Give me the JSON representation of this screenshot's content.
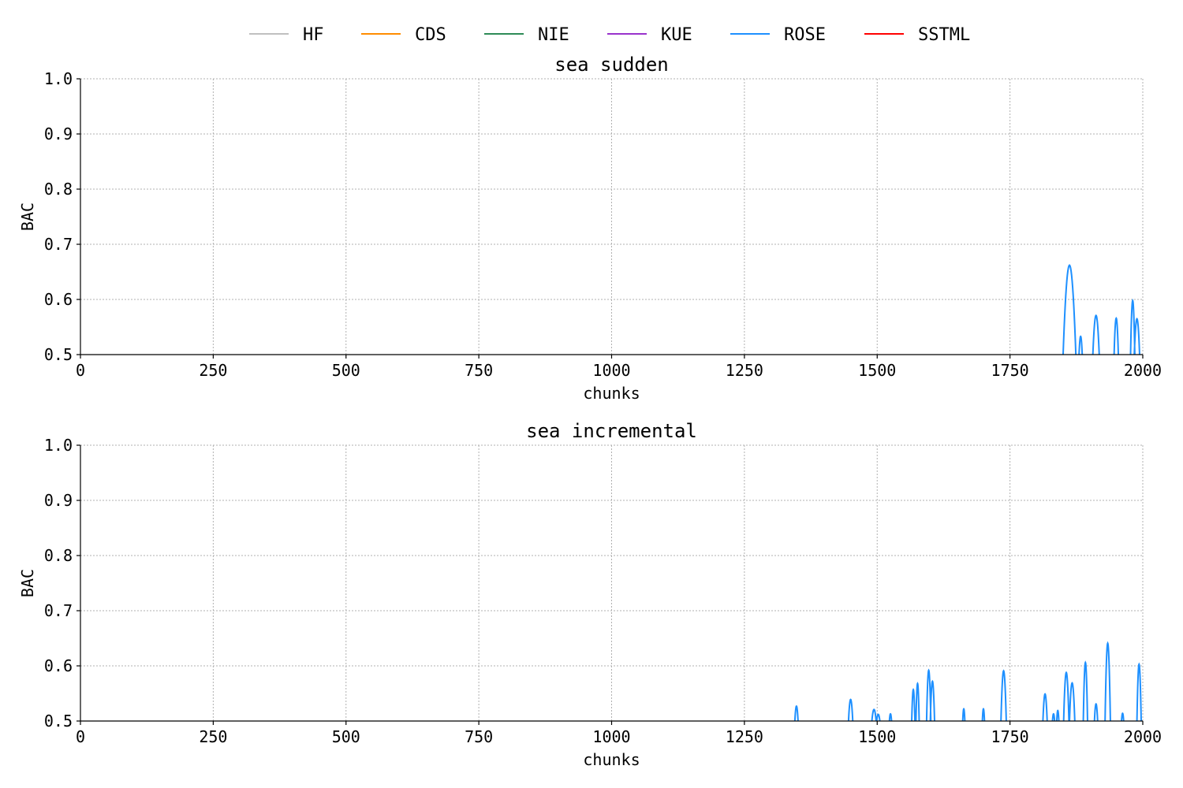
{
  "legend": [
    {
      "name": "HF",
      "color": "#c0c0c0"
    },
    {
      "name": "CDS",
      "color": "#ff8c00"
    },
    {
      "name": "NIE",
      "color": "#2e8b57"
    },
    {
      "name": "KUE",
      "color": "#9932cc"
    },
    {
      "name": "ROSE",
      "color": "#1e90ff"
    },
    {
      "name": "SSTML",
      "color": "#ff0000"
    }
  ],
  "chart_data": [
    {
      "type": "line",
      "title": "sea sudden",
      "xlabel": "chunks",
      "ylabel": "BAC",
      "xlim": [
        0,
        2000
      ],
      "ylim": [
        0.5,
        1.0
      ],
      "xticks": [
        0,
        250,
        500,
        750,
        1000,
        1250,
        1500,
        1750,
        2000
      ],
      "yticks": [
        0.5,
        0.6,
        0.7,
        0.8,
        0.9,
        1.0
      ],
      "grid": true,
      "legend_position": "top-center",
      "series": [
        {
          "name": "ROSE",
          "color": "#1e90ff",
          "peaks": [
            [
              1862,
              0.662,
              12
            ],
            [
              1883,
              0.533,
              3
            ],
            [
              1912,
              0.571,
              6
            ],
            [
              1950,
              0.566,
              4
            ],
            [
              1981,
              0.598,
              4
            ],
            [
              1989,
              0.565,
              5
            ]
          ]
        }
      ]
    },
    {
      "type": "line",
      "title": "sea incremental",
      "xlabel": "chunks",
      "ylabel": "BAC",
      "xlim": [
        0,
        2000
      ],
      "ylim": [
        0.5,
        1.0
      ],
      "xticks": [
        0,
        250,
        500,
        750,
        1000,
        1250,
        1500,
        1750,
        2000
      ],
      "yticks": [
        0.5,
        0.6,
        0.7,
        0.8,
        0.9,
        1.0
      ],
      "grid": true,
      "legend_position": "top-center",
      "series": [
        {
          "name": "ROSE",
          "color": "#1e90ff",
          "peaks": [
            [
              1348,
              0.527,
              3
            ],
            [
              1450,
              0.539,
              4
            ],
            [
              1494,
              0.521,
              4
            ],
            [
              1502,
              0.512,
              3
            ],
            [
              1525,
              0.513,
              2
            ],
            [
              1568,
              0.557,
              3
            ],
            [
              1576,
              0.568,
              3
            ],
            [
              1597,
              0.592,
              4
            ],
            [
              1604,
              0.572,
              4
            ],
            [
              1663,
              0.522,
              2
            ],
            [
              1700,
              0.522,
              2
            ],
            [
              1738,
              0.591,
              5
            ],
            [
              1816,
              0.549,
              4
            ],
            [
              1832,
              0.513,
              2
            ],
            [
              1840,
              0.519,
              2
            ],
            [
              1856,
              0.588,
              5
            ],
            [
              1867,
              0.569,
              5
            ],
            [
              1892,
              0.606,
              4
            ],
            [
              1912,
              0.531,
              3
            ],
            [
              1934,
              0.641,
              5
            ],
            [
              1962,
              0.514,
              2
            ],
            [
              1993,
              0.603,
              4
            ]
          ]
        }
      ]
    }
  ]
}
